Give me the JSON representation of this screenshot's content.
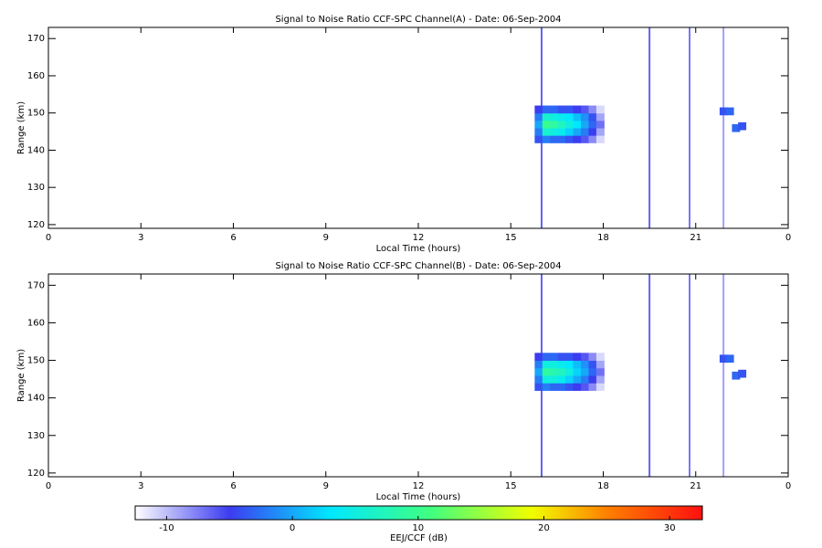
{
  "chart_data": [
    {
      "type": "heatmap",
      "title": "Signal to Noise Ratio CCF-SPC Channel(A) - Date: 06-Sep-2004",
      "xlabel": "Local Time (hours)",
      "ylabel": "Range (km)",
      "xlim": [
        0,
        24
      ],
      "xticks": [
        0,
        3,
        6,
        9,
        12,
        15,
        18,
        21,
        {
          "value": 24,
          "label": "0"
        }
      ],
      "ylim": [
        119,
        173
      ],
      "yticks": [
        120,
        130,
        140,
        150,
        160,
        170
      ],
      "x": [
        15.9,
        15.9,
        15.9,
        15.9,
        15.9,
        16.15,
        16.15,
        16.15,
        16.15,
        16.15,
        16.4,
        16.4,
        16.4,
        16.4,
        16.4,
        16.65,
        16.65,
        16.65,
        16.65,
        16.65,
        16.9,
        16.9,
        16.9,
        16.9,
        16.9,
        17.15,
        17.15,
        17.15,
        17.15,
        17.15,
        17.4,
        17.4,
        17.4,
        17.4,
        17.4,
        17.65,
        17.65,
        17.65,
        17.65,
        17.65,
        17.9,
        17.9,
        17.9,
        17.9,
        17.9,
        21.9,
        22.1,
        22.3,
        22.5
      ],
      "y": [
        143,
        145,
        147,
        149,
        151,
        143,
        145,
        147,
        149,
        151,
        143,
        145,
        147,
        149,
        151,
        143,
        145,
        147,
        149,
        151,
        143,
        145,
        147,
        149,
        151,
        143,
        145,
        147,
        149,
        151,
        143,
        145,
        147,
        149,
        151,
        143,
        145,
        147,
        149,
        151,
        143,
        145,
        147,
        149,
        151,
        150.5,
        150.5,
        146,
        146.5
      ],
      "values": [
        -4,
        -2,
        0,
        -2,
        -5,
        -2,
        6,
        10,
        6,
        -3,
        -3,
        5,
        9,
        5,
        -3,
        -3,
        4,
        7,
        4,
        -4,
        -4,
        2,
        5,
        3,
        -4,
        -5,
        0,
        3,
        1,
        -5,
        -6,
        -2,
        0,
        -1,
        -6,
        -8,
        -5,
        -3,
        -4,
        -8,
        -11,
        -9,
        -7,
        -9,
        -11,
        -4,
        -3,
        -3,
        -4
      ],
      "streaks": {
        "x": [
          16.0,
          19.5,
          20.8,
          21.9
        ],
        "values": [
          -5,
          -5,
          -6,
          -8
        ]
      }
    },
    {
      "type": "heatmap",
      "title": "Signal to Noise Ratio CCF-SPC Channel(B) - Date: 06-Sep-2004",
      "xlabel": "Local Time (hours)",
      "ylabel": "Range (km)",
      "xlim": [
        0,
        24
      ],
      "xticks": [
        0,
        3,
        6,
        9,
        12,
        15,
        18,
        21,
        {
          "value": 24,
          "label": "0"
        }
      ],
      "ylim": [
        119,
        173
      ],
      "yticks": [
        120,
        130,
        140,
        150,
        160,
        170
      ],
      "x": [
        15.9,
        15.9,
        15.9,
        15.9,
        15.9,
        16.15,
        16.15,
        16.15,
        16.15,
        16.15,
        16.4,
        16.4,
        16.4,
        16.4,
        16.4,
        16.65,
        16.65,
        16.65,
        16.65,
        16.65,
        16.9,
        16.9,
        16.9,
        16.9,
        16.9,
        17.15,
        17.15,
        17.15,
        17.15,
        17.15,
        17.4,
        17.4,
        17.4,
        17.4,
        17.4,
        17.65,
        17.65,
        17.65,
        17.65,
        17.65,
        17.9,
        17.9,
        17.9,
        17.9,
        17.9,
        21.9,
        22.1,
        22.3,
        22.5
      ],
      "y": [
        143,
        145,
        147,
        149,
        151,
        143,
        145,
        147,
        149,
        151,
        143,
        145,
        147,
        149,
        151,
        143,
        145,
        147,
        149,
        151,
        143,
        145,
        147,
        149,
        151,
        143,
        145,
        147,
        149,
        151,
        143,
        145,
        147,
        149,
        151,
        143,
        145,
        147,
        149,
        151,
        143,
        145,
        147,
        149,
        151,
        150.5,
        150.5,
        146,
        146.5
      ],
      "values": [
        -4,
        -2,
        0,
        -2,
        -5,
        -2,
        5,
        9,
        5,
        -3,
        -3,
        5,
        8,
        5,
        -3,
        -3,
        4,
        7,
        4,
        -4,
        -4,
        2,
        5,
        3,
        -4,
        -5,
        0,
        2,
        1,
        -5,
        -6,
        -2,
        0,
        -1,
        -6,
        -8,
        -5,
        -3,
        -4,
        -8,
        -11,
        -9,
        -7,
        -9,
        -11,
        -4,
        -3,
        -3,
        -4
      ],
      "streaks": {
        "x": [
          16.0,
          19.5,
          20.8,
          21.9
        ],
        "values": [
          -5,
          -5,
          -6,
          -8
        ]
      }
    },
    {
      "type": "colorbar",
      "xlabel": "EEJ/CCF (dB)",
      "xlim": [
        -12.5,
        32.6
      ],
      "xticks": [
        -10,
        0,
        10,
        20,
        30
      ],
      "stops": [
        -12.5,
        -5,
        3,
        11,
        19,
        25,
        32.6
      ],
      "colors": [
        "#ffffff",
        "#3c3cf0",
        "#00e8ff",
        "#40ff80",
        "#f0ff00",
        "#ff8000",
        "#ff1010"
      ]
    }
  ]
}
